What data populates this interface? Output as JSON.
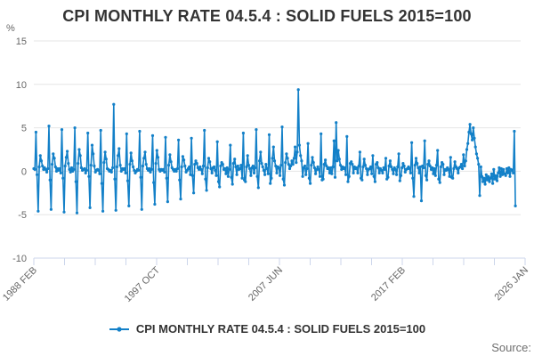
{
  "header": {
    "title": "CPI MONTHLY RATE 04.5.4 : SOLID FUELS 2015=100"
  },
  "source": {
    "label": "Source:"
  },
  "legend": {
    "marker_icon": "line-with-dot-icon"
  },
  "colors": {
    "series": "#1380c8",
    "grid": "#e6e6e6",
    "axis": "#ccd6eb",
    "text": "#666666",
    "title": "#333333"
  },
  "chart_data": {
    "type": "line",
    "title": "CPI MONTHLY RATE 04.5.4 : SOLID FUELS 2015=100",
    "xlabel": "",
    "ylabel": "%",
    "unit": "%",
    "ylim": [
      -10,
      15
    ],
    "y_ticks": [
      15,
      10,
      5,
      0,
      -5,
      -10
    ],
    "grid": true,
    "legend_position": "bottom",
    "frequency": "monthly",
    "x_start": "1988 FEB",
    "x_end": "2026 JAN",
    "x_tick_count": 17,
    "x_label_every": 4,
    "x_tick_labels": [
      "1988 FEB",
      "1997 OCT",
      "2007 JUN",
      "2017 FEB",
      "2026 JAN"
    ],
    "axis_total_months": 456,
    "series": [
      {
        "name": "CPI MONTHLY RATE 04.5.4 : SOLID FUELS 2015=100",
        "color": "#1380c8",
        "start": "1988 FEB",
        "values": [
          0.3,
          0.2,
          4.5,
          -0.4,
          -4.6,
          0.5,
          1.8,
          1.2,
          0.6,
          0.2,
          0.4,
          0.2,
          -0.1,
          0.3,
          5.2,
          -1.0,
          -4.4,
          0.8,
          2.0,
          1.5,
          0.5,
          0.0,
          0.3,
          0.1,
          0.3,
          -0.2,
          4.8,
          -0.8,
          -4.7,
          0.6,
          1.6,
          2.3,
          0.9,
          0.2,
          -0.1,
          0.4,
          0.0,
          0.2,
          5.0,
          -1.2,
          -4.8,
          0.9,
          2.5,
          1.8,
          0.4,
          0.1,
          0.2,
          0.3,
          -0.2,
          0.1,
          4.4,
          -0.6,
          -4.2,
          0.7,
          3.0,
          2.0,
          0.6,
          -0.1,
          0.1,
          0.2,
          0.1,
          -0.3,
          4.7,
          -1.4,
          -4.6,
          1.0,
          2.2,
          1.4,
          0.3,
          0.2,
          0.0,
          0.1,
          -0.1,
          0.4,
          7.7,
          -0.9,
          -4.5,
          0.5,
          1.8,
          2.6,
          0.7,
          0.0,
          0.3,
          0.2,
          0.3,
          -0.2,
          4.3,
          -1.1,
          -4.0,
          0.8,
          2.1,
          1.2,
          0.5,
          0.1,
          -0.2,
          0.0,
          0.2,
          0.1,
          4.6,
          -0.7,
          -4.4,
          0.6,
          1.5,
          2.2,
          0.8,
          0.3,
          0.1,
          0.3,
          -0.1,
          0.2,
          4.1,
          -1.3,
          -3.8,
          0.9,
          2.4,
          1.6,
          0.2,
          0.0,
          0.2,
          0.1,
          0.2,
          -0.1,
          3.9,
          -0.8,
          -3.5,
          0.7,
          1.9,
          1.1,
          0.4,
          0.2,
          0.0,
          0.2,
          0.0,
          0.3,
          3.6,
          -1.0,
          -3.2,
          0.5,
          1.7,
          1.3,
          0.6,
          -0.1,
          0.1,
          0.3,
          0.5,
          -0.4,
          3.8,
          -0.5,
          -2.5,
          0.8,
          1.2,
          0.9,
          0.4,
          0.2,
          0.5,
          0.2,
          -0.3,
          0.6,
          4.7,
          -0.9,
          -2.2,
          0.4,
          1.5,
          1.1,
          0.3,
          -0.2,
          0.4,
          0.5,
          0.1,
          -0.5,
          3.4,
          -1.2,
          -1.8,
          0.6,
          1.0,
          0.8,
          0.2,
          0.3,
          -0.3,
          0.4,
          -0.6,
          0.2,
          3.0,
          -0.7,
          -1.5,
          0.9,
          1.4,
          0.5,
          -0.4,
          0.6,
          0.2,
          0.3,
          0.7,
          -0.8,
          4.4,
          -1.0,
          -1.2,
          0.5,
          1.8,
          0.7,
          0.3,
          -0.5,
          0.4,
          0.6,
          -0.2,
          0.4,
          4.8,
          -0.6,
          -1.9,
          1.2,
          2.2,
          0.9,
          0.5,
          0.1,
          -0.4,
          0.8,
          0.3,
          -0.3,
          4.2,
          -1.4,
          -0.8,
          1.5,
          2.8,
          1.2,
          0.6,
          -0.2,
          0.5,
          0.4,
          -0.5,
          0.7,
          5.1,
          -0.9,
          -1.6,
          1.0,
          2.0,
          1.5,
          0.8,
          0.3,
          0.6,
          1.2,
          0.8,
          1.5,
          2.8,
          1.0,
          2.2,
          9.4,
          3.0,
          1.8,
          1.2,
          -0.6,
          0.4,
          0.6,
          -0.4,
          0.3,
          3.2,
          -0.8,
          -1.4,
          0.7,
          1.6,
          1.0,
          0.4,
          -0.3,
          0.2,
          0.5,
          0.2,
          -0.6,
          4.3,
          -1.0,
          -0.9,
          0.8,
          1.3,
          0.6,
          0.3,
          0.4,
          -0.2,
          0.4,
          -0.3,
          0.5,
          3.5,
          -0.7,
          5.6,
          1.2,
          2.4,
          1.4,
          0.7,
          0.2,
          0.5,
          0.3,
          0.4,
          -0.4,
          4.0,
          -1.2,
          -0.6,
          0.9,
          1.1,
          0.8,
          -0.2,
          0.5,
          0.3,
          0.4,
          -0.2,
          0.6,
          2.2,
          -0.8,
          -1.0,
          0.5,
          1.4,
          0.7,
          0.3,
          -0.4,
          0.2,
          0.3,
          0.5,
          -0.3,
          1.8,
          -0.6,
          -1.2,
          0.8,
          1.0,
          0.4,
          -0.2,
          0.3,
          0.1,
          -0.2,
          0.4,
          0.2,
          1.5,
          -0.9,
          -0.7,
          0.6,
          1.2,
          0.5,
          0.2,
          -0.3,
          0.4,
          0.2,
          -0.4,
          0.5,
          2.0,
          -1.1,
          -0.5,
          0.4,
          0.9,
          0.6,
          -0.1,
          0.2,
          0.3,
          0.5,
          0.3,
          -0.2,
          3.3,
          -0.8,
          -2.9,
          0.7,
          1.5,
          0.9,
          0.4,
          -0.2,
          0.5,
          -3.4,
          0.6,
          0.4,
          3.5,
          -0.5,
          -1.0,
          0.8,
          1.2,
          0.6,
          0.2,
          0.4,
          -0.3,
          0.3,
          -0.5,
          0.7,
          2.4,
          -0.9,
          -1.3,
          0.5,
          1.0,
          0.8,
          -0.4,
          0.2,
          0.1,
          0.4,
          0.2,
          -0.6,
          1.6,
          -0.7,
          -0.8,
          0.3,
          1.1,
          0.5,
          0.3,
          -0.2,
          0.4,
          0.5,
          0.8,
          0.3,
          1.9,
          0.6,
          1.2,
          2.5,
          3.2,
          4.5,
          5.4,
          4.3,
          3.6,
          5.0,
          3.8,
          2.8,
          2.0,
          1.5,
          0.8,
          -2.8,
          0.5,
          -0.6,
          -1.2,
          -0.8,
          -1.5,
          -0.4,
          -1.0,
          -0.6,
          -1.2,
          -0.8,
          -0.3,
          -1.4,
          0.2,
          -0.9,
          -0.5,
          -1.1,
          -0.2,
          0.4,
          -0.6,
          0.3,
          -0.4,
          0.2,
          -0.3,
          -0.5,
          0.3,
          -0.2,
          0.4,
          -0.6,
          0.2,
          0.1,
          -0.2,
          4.6,
          -4.0
        ]
      }
    ]
  }
}
